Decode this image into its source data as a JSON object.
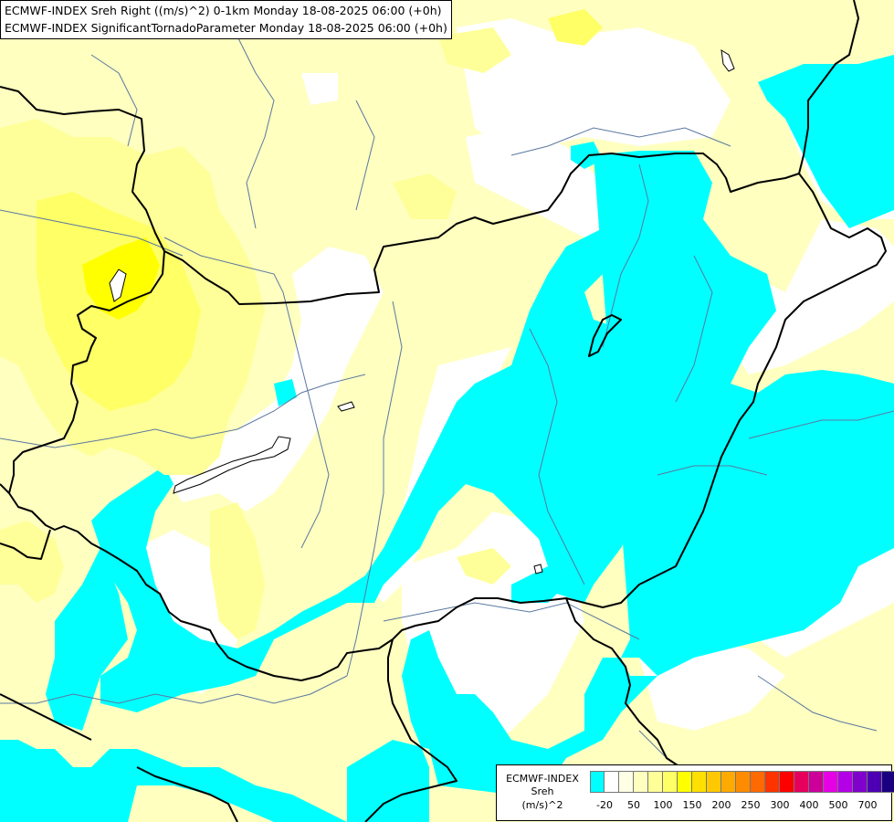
{
  "header": {
    "line1": "ECMWF-INDEX Sreh Right ((m/s)^2) 0-1km Monday 18-08-2025 06:00 (+0h)",
    "line2": "ECMWF-INDEX SignificantTornadoParameter Monday 18-08-2025 06:00 (+0h)"
  },
  "legend": {
    "label_line1": "ECMWF-INDEX",
    "label_line2": "Sreh",
    "label_line3": "(m/s)^2",
    "colors": [
      "#00ffff",
      "#ffffff",
      "#ffffe6",
      "#ffffc0",
      "#ffff99",
      "#ffff66",
      "#ffff00",
      "#ffe000",
      "#ffc800",
      "#ffaa00",
      "#ff8c00",
      "#ff6a00",
      "#ff3300",
      "#ff0000",
      "#e6005c",
      "#cc0099",
      "#e600e6",
      "#b300e6",
      "#8000cc",
      "#4d00b3",
      "#1a0080"
    ],
    "ticks": [
      "-20",
      "50",
      "100",
      "150",
      "200",
      "250",
      "300",
      "400",
      "500",
      "700"
    ]
  },
  "colors": {
    "cyan": "#00ffff",
    "white": "#ffffff",
    "pale_yellow": "#ffffc0",
    "light_yellow": "#ffff99",
    "yellow": "#ffff66",
    "bright_yellow": "#ffff00",
    "border": "#000000",
    "river": "#5a78a0"
  }
}
